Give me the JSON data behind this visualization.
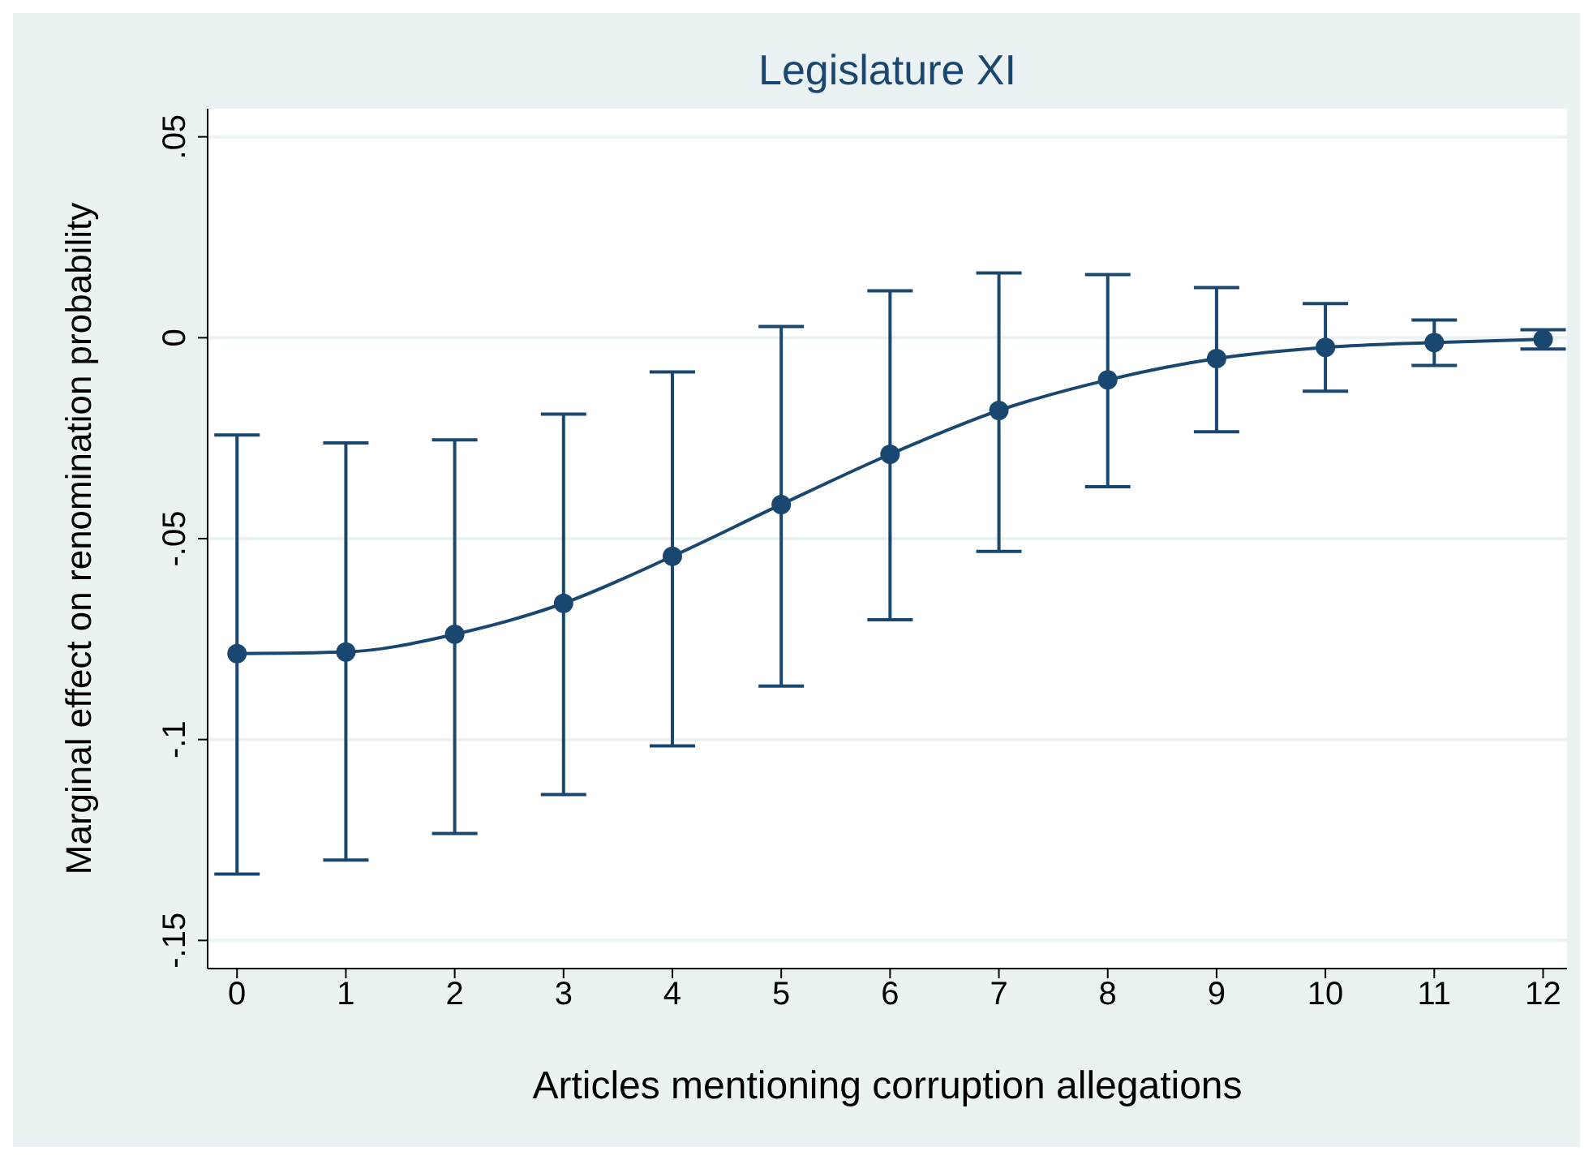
{
  "chart_data": {
    "type": "line",
    "title": "Legislature XI",
    "xlabel": "Articles mentioning corruption allegations",
    "ylabel": "Marginal effect on renomination probability",
    "x": [
      0,
      1,
      2,
      3,
      4,
      5,
      6,
      7,
      8,
      9,
      10,
      11,
      12
    ],
    "series": [
      {
        "color": "#1a476f",
        "values": [
          -0.0786,
          -0.0782,
          -0.0738,
          -0.0661,
          -0.0544,
          -0.0415,
          -0.029,
          -0.0181,
          -0.0105,
          -0.0052,
          -0.0024,
          -0.0012,
          -0.0004
        ],
        "errors": [
          [
            -0.1335,
            -0.0242
          ],
          [
            -0.13,
            -0.0262
          ],
          [
            -0.1234,
            -0.0254
          ],
          [
            -0.1137,
            -0.019
          ],
          [
            -0.1016,
            -0.0085
          ],
          [
            -0.0867,
            0.0028
          ],
          [
            -0.0702,
            0.0117
          ],
          [
            -0.0532,
            0.0161
          ],
          [
            -0.0371,
            0.0157
          ],
          [
            -0.0234,
            0.0125
          ],
          [
            -0.0133,
            0.0085
          ],
          [
            -0.0069,
            0.0044
          ],
          [
            -0.0028,
            0.002
          ]
        ]
      }
    ],
    "xlim": [
      -0.27,
      12.22
    ],
    "xticks": [
      0,
      1,
      2,
      3,
      4,
      5,
      6,
      7,
      8,
      9,
      10,
      11,
      12
    ],
    "ylim": [
      -0.157,
      0.057
    ],
    "yticks": [
      {
        "value": 0.05,
        "label": ".05"
      },
      0,
      {
        "value": -0.05,
        "label": "-.05"
      },
      {
        "value": -0.1,
        "label": "-.1"
      },
      {
        "value": -0.15,
        "label": "-.15"
      }
    ],
    "grid": "y",
    "marker": "circle",
    "line_style": "solid"
  }
}
